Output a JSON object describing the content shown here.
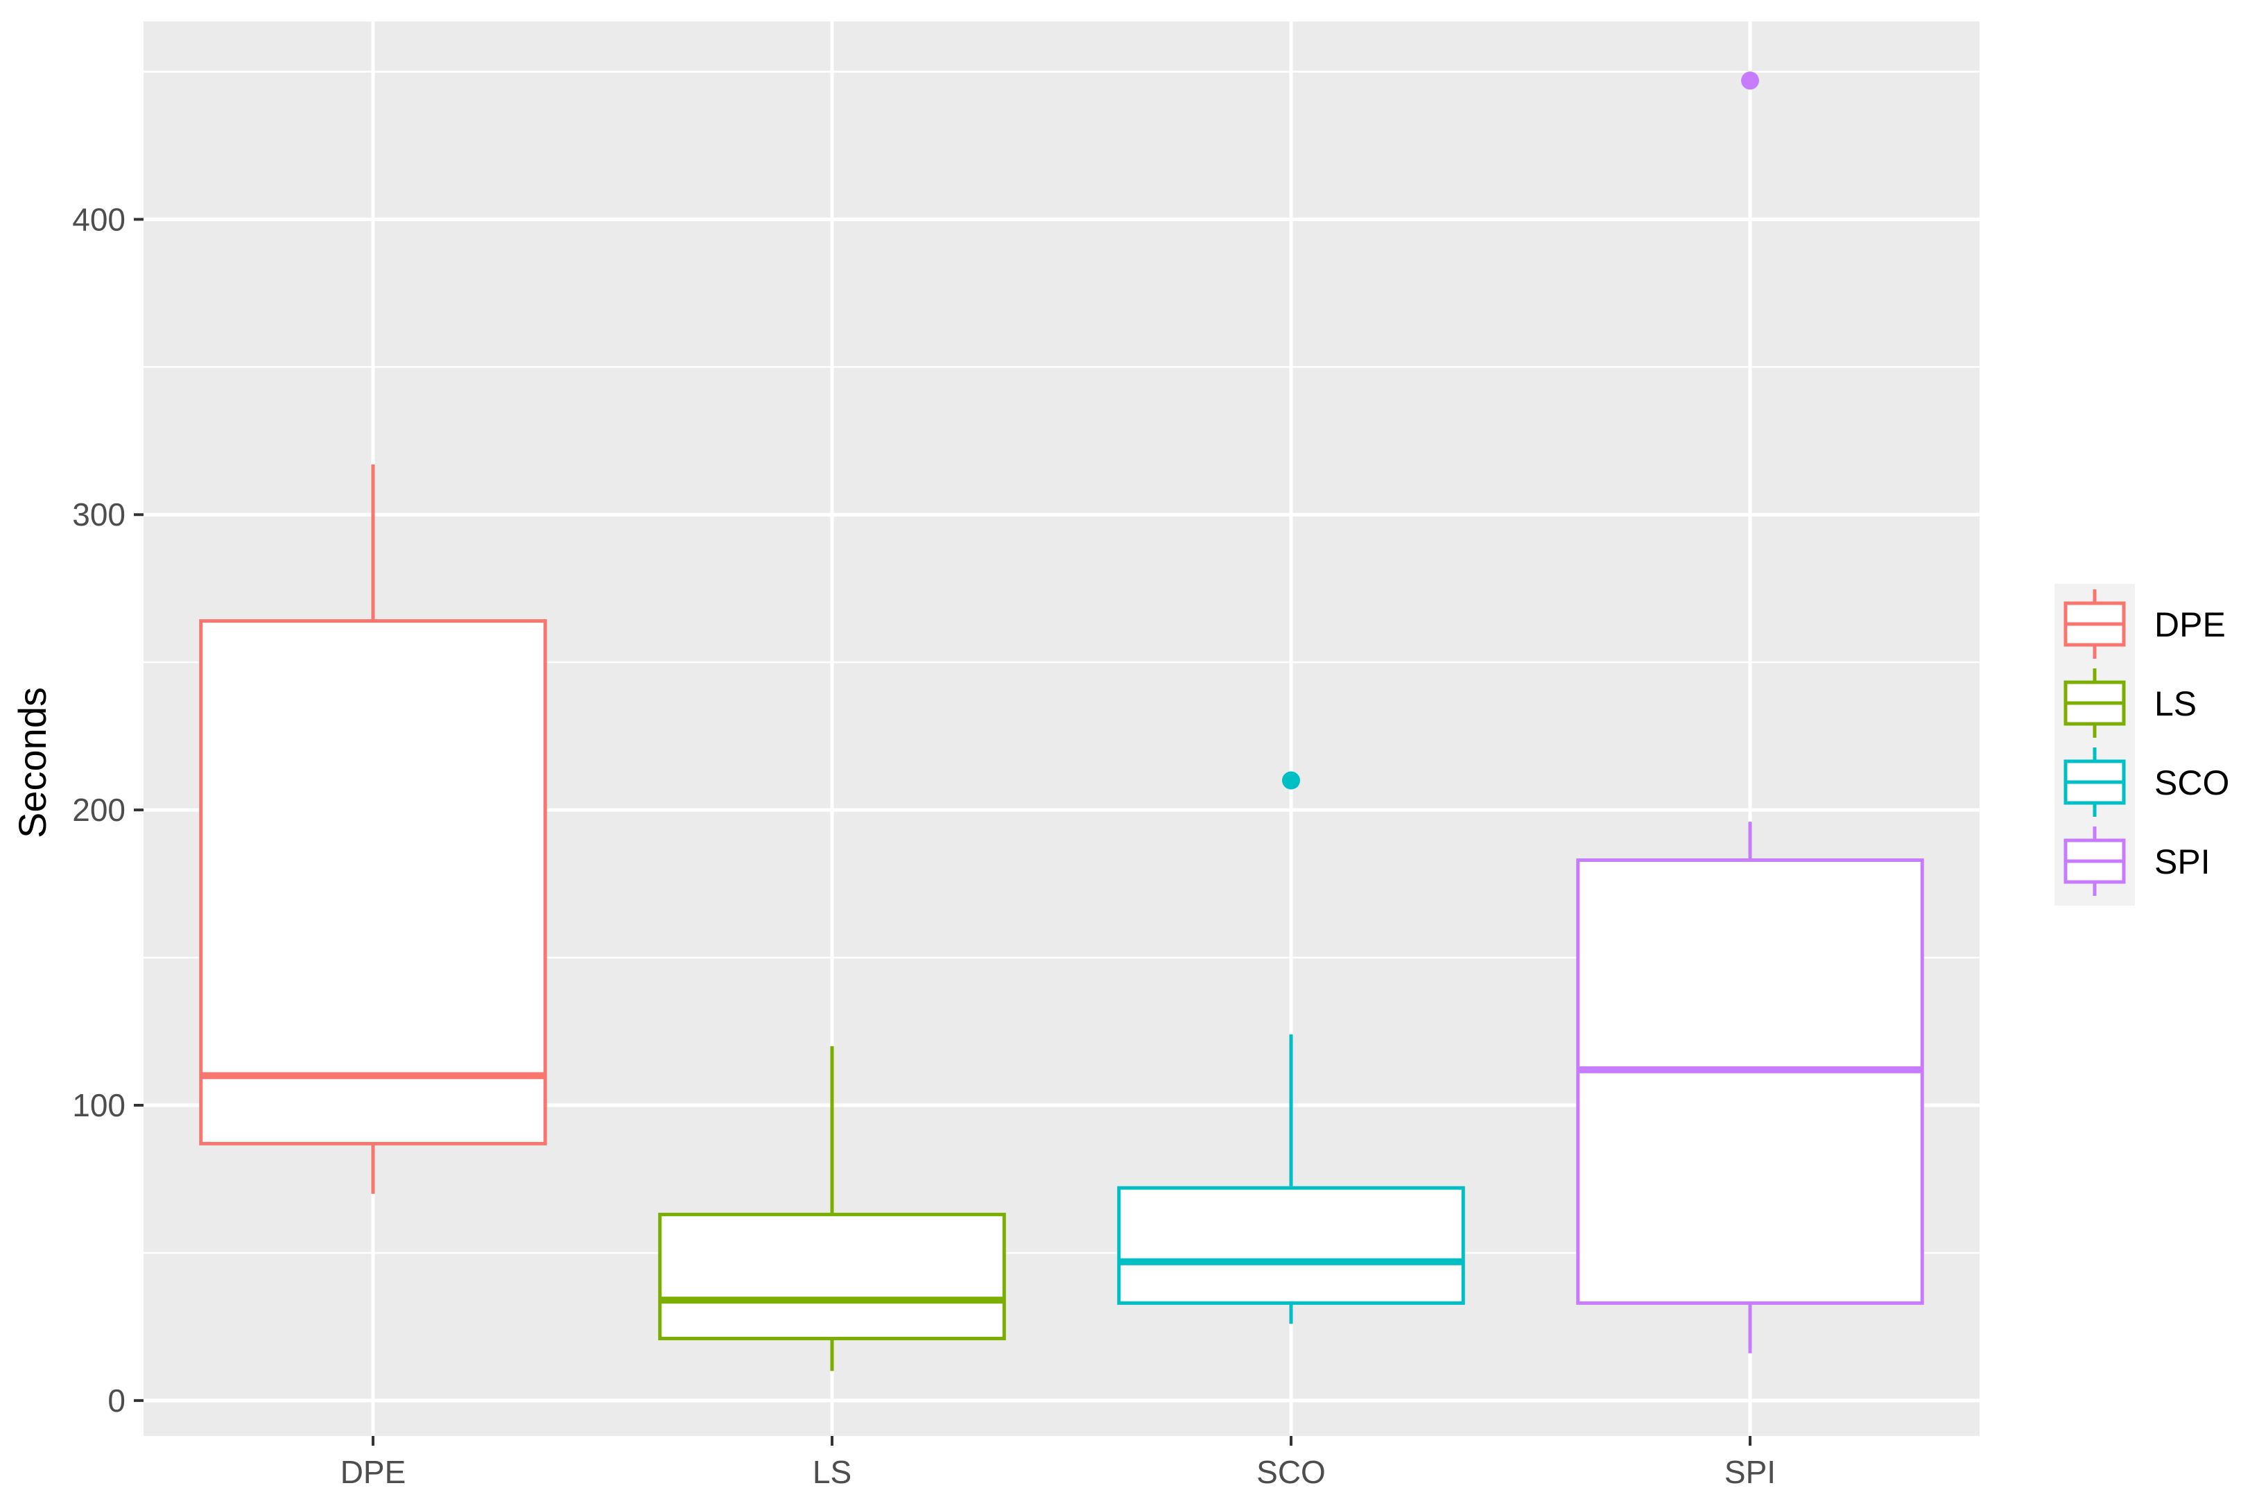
{
  "chart_data": {
    "type": "boxplot",
    "title": "",
    "xlabel": "",
    "ylabel": "Seconds",
    "ylim": [
      -12,
      467
    ],
    "yticks": [
      0,
      100,
      200,
      300,
      400
    ],
    "grid": true,
    "legend_position": "right",
    "categories": [
      "DPE",
      "LS",
      "SCO",
      "SPI"
    ],
    "series": [
      {
        "name": "DPE",
        "color": "#F8766D",
        "whisker_low": 70,
        "q1": 87,
        "median": 110,
        "q3": 264,
        "whisker_high": 317,
        "outliers": []
      },
      {
        "name": "LS",
        "color": "#7CAE00",
        "whisker_low": 10,
        "q1": 21,
        "median": 34,
        "q3": 63,
        "whisker_high": 120,
        "outliers": []
      },
      {
        "name": "SCO",
        "color": "#00BFC4",
        "whisker_low": 26,
        "q1": 33,
        "median": 47,
        "q3": 72,
        "whisker_high": 124,
        "outliers": [
          210
        ]
      },
      {
        "name": "SPI",
        "color": "#C77CFF",
        "whisker_low": 16,
        "q1": 33,
        "median": 112,
        "q3": 183,
        "whisker_high": 196,
        "outliers": [
          447
        ]
      }
    ]
  }
}
